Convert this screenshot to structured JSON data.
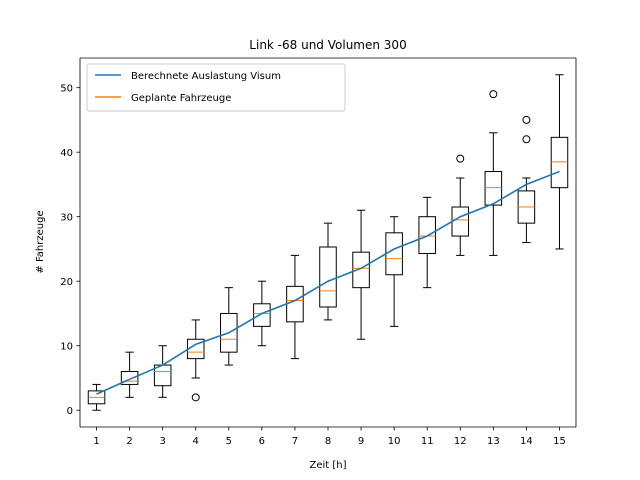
{
  "chart_data": {
    "type": "box",
    "title": "Link -68 und Volumen 300",
    "xlabel": "Zeit [h]",
    "ylabel": "# Fahrzeuge",
    "xlim": [
      0.5,
      15.5
    ],
    "ylim": [
      -2.6,
      54.6
    ],
    "x_ticks": [
      1,
      2,
      3,
      4,
      5,
      6,
      7,
      8,
      9,
      10,
      11,
      12,
      13,
      14,
      15
    ],
    "y_ticks": [
      0,
      10,
      20,
      30,
      40,
      50
    ],
    "grid": false,
    "legend_position": "top-left",
    "line_series": {
      "name": "Berechnete Auslastung Visum",
      "color": "#1f77b4",
      "x": [
        1,
        2,
        3,
        4,
        5,
        6,
        7,
        8,
        9,
        10,
        11,
        12,
        13,
        14,
        15
      ],
      "y": [
        2.5,
        4.8,
        7.0,
        10.2,
        12.0,
        15.0,
        17.0,
        20.0,
        22.0,
        25.0,
        27.0,
        30.0,
        32.0,
        35.0,
        37.0
      ]
    },
    "box_series": {
      "name": "Geplante Fahrzeuge",
      "median_color": "#ff7f0e",
      "boxes": [
        {
          "x": 1,
          "whislo": 0,
          "q1": 1,
          "med": 2,
          "q3": 3,
          "whishi": 4,
          "fliers": []
        },
        {
          "x": 2,
          "whislo": 2,
          "q1": 4,
          "med": 4.5,
          "q3": 6,
          "whishi": 9,
          "fliers": []
        },
        {
          "x": 3,
          "whislo": 2,
          "q1": 3.8,
          "med": 6,
          "q3": 7,
          "whishi": 10,
          "fliers": []
        },
        {
          "x": 4,
          "whislo": 5,
          "q1": 8,
          "med": 9,
          "q3": 11,
          "whishi": 14,
          "fliers": [
            2
          ]
        },
        {
          "x": 5,
          "whislo": 7,
          "q1": 9,
          "med": 11,
          "q3": 15,
          "whishi": 19,
          "fliers": []
        },
        {
          "x": 6,
          "whislo": 10,
          "q1": 13,
          "med": 15,
          "q3": 16.5,
          "whishi": 20,
          "fliers": []
        },
        {
          "x": 7,
          "whislo": 8,
          "q1": 13.7,
          "med": 17,
          "q3": 19.2,
          "whishi": 24,
          "fliers": []
        },
        {
          "x": 8,
          "whislo": 14,
          "q1": 16,
          "med": 18.5,
          "q3": 25.3,
          "whishi": 29,
          "fliers": []
        },
        {
          "x": 9,
          "whislo": 11,
          "q1": 19,
          "med": 22,
          "q3": 24.5,
          "whishi": 31,
          "fliers": []
        },
        {
          "x": 10,
          "whislo": 13,
          "q1": 21,
          "med": 23.5,
          "q3": 27.5,
          "whishi": 30,
          "fliers": []
        },
        {
          "x": 11,
          "whislo": 19,
          "q1": 24.3,
          "med": 27,
          "q3": 30,
          "whishi": 33,
          "fliers": []
        },
        {
          "x": 12,
          "whislo": 24,
          "q1": 27,
          "med": 29.5,
          "q3": 31.5,
          "whishi": 36,
          "fliers": [
            39
          ]
        },
        {
          "x": 13,
          "whislo": 24,
          "q1": 31.8,
          "med": 34.5,
          "q3": 37,
          "whishi": 43,
          "fliers": [
            49
          ]
        },
        {
          "x": 14,
          "whislo": 26,
          "q1": 29,
          "med": 31.5,
          "q3": 34,
          "whishi": 36,
          "fliers": [
            42,
            45
          ]
        },
        {
          "x": 15,
          "whislo": 25,
          "q1": 34.5,
          "med": 38.5,
          "q3": 42.3,
          "whishi": 52,
          "fliers": []
        }
      ]
    },
    "legend": [
      {
        "label": "Berechnete Auslastung Visum",
        "color": "#1f77b4"
      },
      {
        "label": "Geplante Fahrzeuge",
        "color": "#ff7f0e"
      }
    ]
  }
}
